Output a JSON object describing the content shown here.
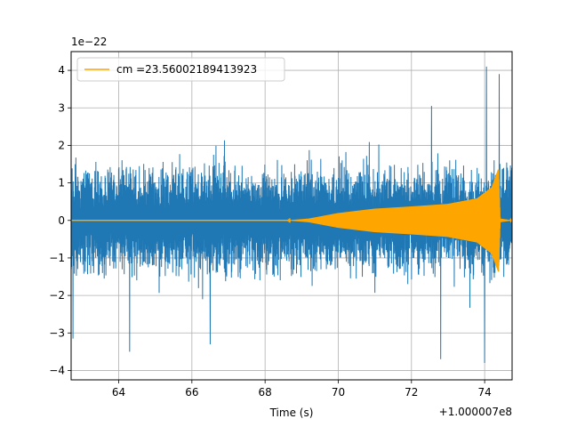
{
  "chart_data": {
    "type": "line",
    "title": "",
    "xlabel": "Time (s)",
    "ylabel": "",
    "x_offset_label": "+1.000007e8",
    "y_scale_label": "1e−22",
    "xlim": [
      62.7,
      74.75
    ],
    "ylim": [
      -4.25,
      4.5
    ],
    "x_ticks": [
      64,
      66,
      68,
      70,
      72,
      74
    ],
    "x_tick_labels": [
      "64",
      "66",
      "68",
      "70",
      "72",
      "74"
    ],
    "y_ticks": [
      -4,
      -3,
      -2,
      -1,
      0,
      1,
      2,
      3,
      4
    ],
    "y_tick_labels": [
      "−4",
      "−3",
      "−2",
      "−1",
      "0",
      "1",
      "2",
      "3",
      "4"
    ],
    "grid": true,
    "legend_position": "top-left",
    "series": [
      {
        "name": "",
        "color": "#1f77b4",
        "description": "noisy strain data",
        "x_range": [
          62.7,
          74.75
        ],
        "typical_amplitude": 1.6,
        "spikes": [
          {
            "x": 74.05,
            "y": 4.1
          },
          {
            "x": 74.4,
            "y": 3.9
          },
          {
            "x": 72.55,
            "y": 3.05
          },
          {
            "x": 64.3,
            "y": -3.5
          },
          {
            "x": 74.0,
            "y": -3.8
          },
          {
            "x": 72.8,
            "y": -3.7
          },
          {
            "x": 62.75,
            "y": -3.15
          },
          {
            "x": 66.5,
            "y": -3.3
          }
        ]
      },
      {
        "name": "cm =23.56002189413923",
        "color": "#ffa500",
        "description": "chirp template",
        "envelope": [
          {
            "x": 62.7,
            "y": 0.0
          },
          {
            "x": 68.6,
            "y": 0.0
          },
          {
            "x": 69.2,
            "y": 0.05
          },
          {
            "x": 70.0,
            "y": 0.2
          },
          {
            "x": 71.0,
            "y": 0.32
          },
          {
            "x": 72.0,
            "y": 0.38
          },
          {
            "x": 73.0,
            "y": 0.45
          },
          {
            "x": 73.8,
            "y": 0.6
          },
          {
            "x": 74.2,
            "y": 0.9
          },
          {
            "x": 74.38,
            "y": 1.4
          },
          {
            "x": 74.42,
            "y": 0.05
          },
          {
            "x": 74.75,
            "y": 0.0
          }
        ]
      }
    ]
  }
}
